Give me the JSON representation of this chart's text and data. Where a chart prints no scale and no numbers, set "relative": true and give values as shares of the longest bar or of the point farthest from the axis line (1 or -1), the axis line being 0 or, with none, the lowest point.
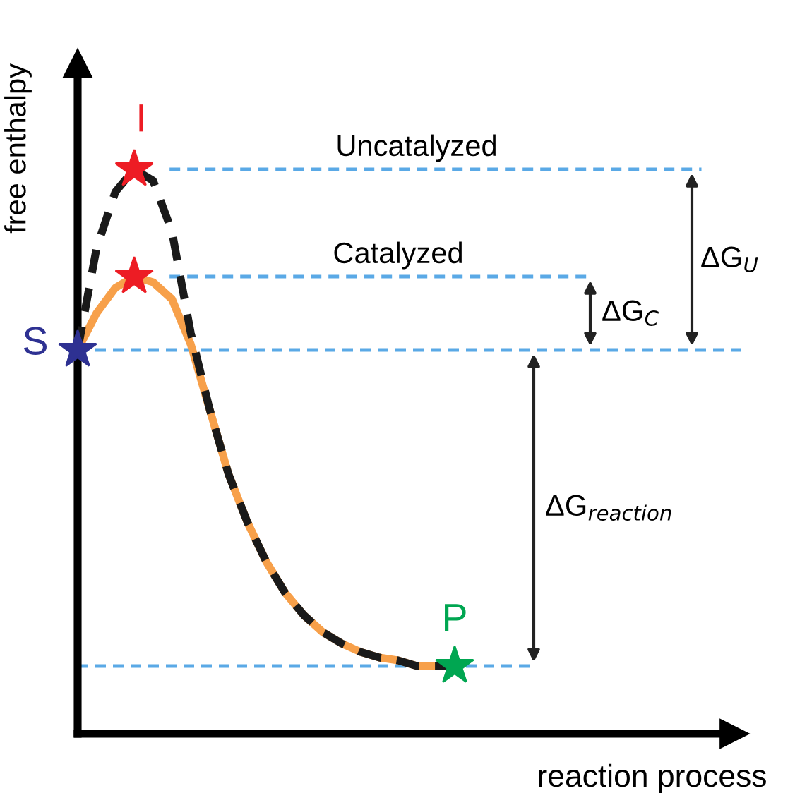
{
  "chart_data": {
    "type": "line",
    "relative": true,
    "xlabel": "reaction process",
    "ylabel": "free enthalpy",
    "categories": [
      null,
      null,
      null,
      null,
      null,
      null,
      null,
      null,
      null,
      null,
      null,
      null,
      null,
      null,
      null,
      null,
      null,
      null,
      null,
      null,
      null
    ],
    "series": [
      {
        "color": "#f7a04a",
        "line_style": "solid",
        "colors": [
          "#2e3192",
          null,
          null,
          "#ed1c24",
          null,
          null,
          null,
          null,
          null,
          null,
          null,
          null,
          null,
          null,
          null,
          null,
          null,
          null,
          null,
          null,
          "#00a651"
        ],
        "values": [
          0.68,
          0.745,
          0.79,
          0.81,
          0.8,
          0.77,
          0.69,
          0.575,
          0.46,
          0.375,
          0.305,
          0.25,
          0.21,
          0.18,
          0.16,
          0.145,
          0.135,
          0.13,
          0.12,
          0.12,
          0.12
        ]
      },
      {
        "color": "#1a1a1a",
        "line_style": "dashed",
        "colors": [
          null,
          null,
          null,
          "#ed1c24",
          null,
          null,
          null,
          null,
          null,
          null,
          null,
          null,
          null,
          null,
          null,
          null,
          null,
          null,
          null,
          null,
          null
        ],
        "values": [
          0.68,
          0.86,
          0.96,
          1.0,
          0.98,
          0.89,
          0.71,
          0.575,
          0.46,
          0.375,
          0.305,
          0.25,
          0.21,
          0.18,
          0.16,
          0.145,
          0.135,
          0.13,
          0.12,
          0.12,
          0.12
        ]
      }
    ],
    "ref_lines": [
      {
        "axis": "y",
        "value": 1.0,
        "label": "Uncatalyzed",
        "color": "#5aa9e6",
        "line_style": "dashed"
      },
      {
        "axis": "y",
        "value": 0.81,
        "label": "Catalyzed",
        "color": "#5aa9e6",
        "line_style": "dashed"
      },
      {
        "axis": "y",
        "value": 0.68,
        "color": "#5aa9e6",
        "line_style": "dashed"
      },
      {
        "axis": "y",
        "value": 0.12,
        "color": "#5aa9e6",
        "line_style": "dashed"
      }
    ],
    "annotations": [
      "I",
      "S",
      "P",
      "ΔG$_{U}$",
      "ΔG$_{C}$",
      "ΔG$_{reaction}$"
    ]
  }
}
